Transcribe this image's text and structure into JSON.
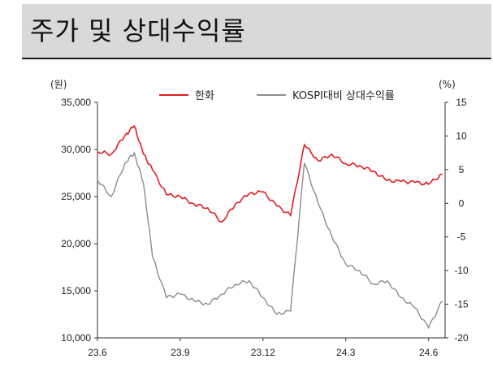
{
  "title": "주가 및 상대수익률",
  "chart_data": {
    "type": "line",
    "y_left_unit": "(원)",
    "y_right_unit": "(%)",
    "ylim_left": [
      10000,
      35000
    ],
    "ylim_right": [
      -20,
      15
    ],
    "y_left_ticks": [
      "35,000",
      "30,000",
      "25,000",
      "20,000",
      "15,000",
      "10,000"
    ],
    "y_right_ticks": [
      "15",
      "10",
      "5",
      "0",
      "-5",
      "-10",
      "-15",
      "-20"
    ],
    "x_ticks": [
      "23.6",
      "23.9",
      "23.12",
      "24.3",
      "24.6"
    ],
    "legend_position": "top",
    "series": [
      {
        "name": "한화",
        "axis": "left",
        "color": "#e31e24",
        "x": [
          "23.6",
          "23.6",
          "23.7",
          "23.7",
          "23.7",
          "23.8",
          "23.8",
          "23.9",
          "23.9",
          "23.10",
          "23.10",
          "23.11",
          "23.11",
          "23.12",
          "23.12",
          "24.1",
          "24.1",
          "24.2",
          "24.2",
          "24.3",
          "24.3",
          "24.4",
          "24.4",
          "24.5",
          "24.5",
          "24.6",
          "24.6"
        ],
        "values": [
          29800,
          29500,
          31500,
          32500,
          29500,
          27800,
          25200,
          25000,
          24200,
          23800,
          22300,
          24200,
          25300,
          25500,
          24000,
          23000,
          30500,
          28800,
          29500,
          28500,
          28300,
          27700,
          26700,
          26600,
          26500,
          26300,
          27400
        ]
      },
      {
        "name": "KOSPI대비 상대수익률",
        "axis": "right",
        "color": "#8c8c8c",
        "x": [
          "23.6",
          "23.6",
          "23.7",
          "23.7",
          "23.7",
          "23.8",
          "23.8",
          "23.9",
          "23.9",
          "23.10",
          "23.10",
          "23.11",
          "23.11",
          "23.12",
          "23.12",
          "24.1",
          "24.1",
          "24.2",
          "24.2",
          "24.3",
          "24.3",
          "24.4",
          "24.4",
          "24.5",
          "24.5",
          "24.6",
          "24.6"
        ],
        "values": [
          3.5,
          1,
          6,
          7.5,
          3,
          -8,
          -14,
          -13.5,
          -14.5,
          -15,
          -13.5,
          -12,
          -11.5,
          -14,
          -16.5,
          -16,
          6,
          0,
          -5,
          -9,
          -10,
          -12,
          -11.5,
          -14,
          -15.5,
          -18.5,
          -14.5
        ]
      }
    ]
  }
}
